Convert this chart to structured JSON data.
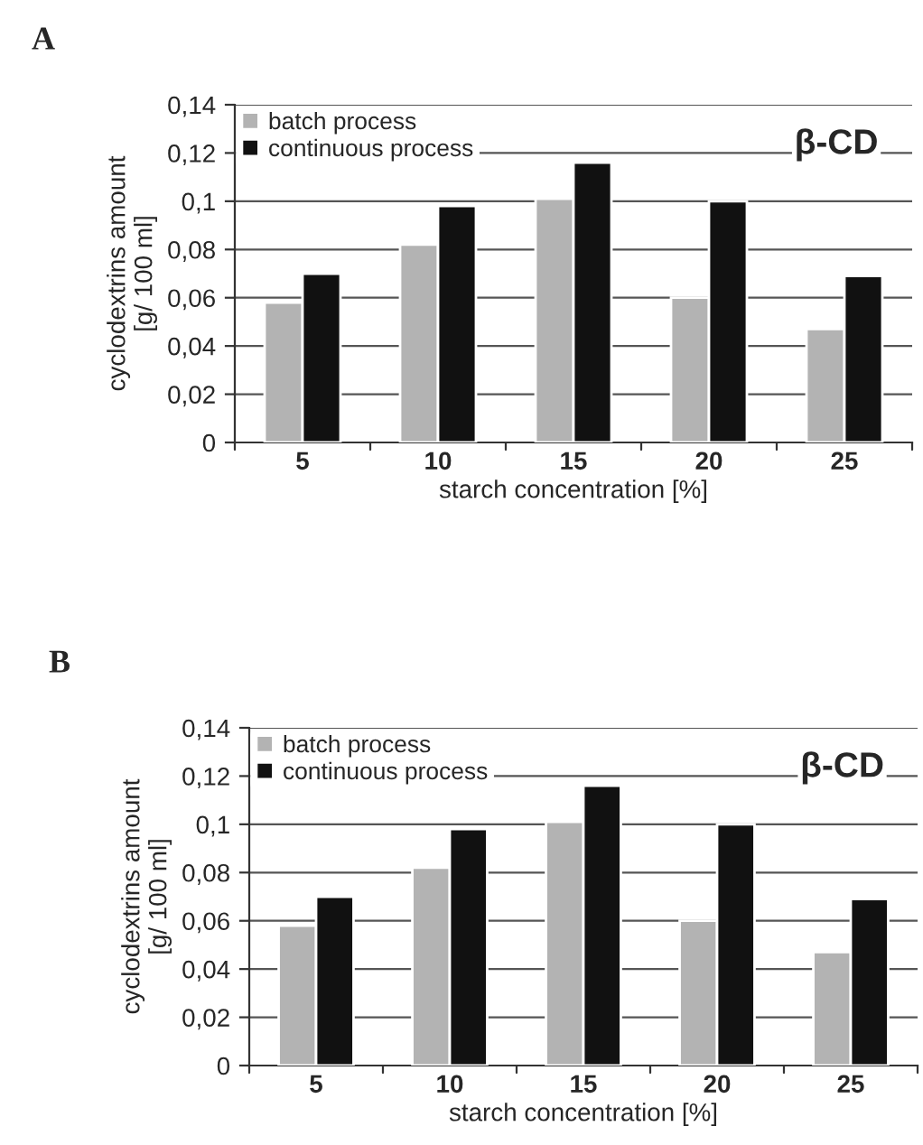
{
  "chart_data": [
    {
      "type": "bar",
      "title": "A",
      "xlabel": "starch concentration [%]",
      "ylabel": "cyclodextrins amount\n[g/ 100 ml]",
      "categories": [
        "5",
        "10",
        "15",
        "20",
        "25"
      ],
      "series": [
        {
          "name": "batch process",
          "color": "#b3b3b3",
          "values": [
            0.058,
            0.082,
            0.101,
            0.06,
            0.047
          ]
        },
        {
          "name": "continuous process",
          "color": "#111111",
          "values": [
            0.07,
            0.098,
            0.116,
            0.1,
            0.069
          ]
        }
      ],
      "ylim": [
        0,
        0.14
      ],
      "yticks": [
        0,
        {
          "value": 0.02,
          "label": "0,02"
        },
        {
          "value": 0.04,
          "label": "0,04"
        },
        {
          "value": 0.06,
          "label": "0,06"
        },
        {
          "value": 0.08,
          "label": "0,08"
        },
        {
          "value": 0.1,
          "label": "0,1"
        },
        {
          "value": 0.12,
          "label": "0,12"
        },
        {
          "value": 0.14,
          "label": "0,14"
        }
      ],
      "annotations": [
        "β-CD"
      ],
      "grid": "y",
      "legend": "top left"
    },
    {
      "type": "bar",
      "title": "B",
      "xlabel": "starch concentration [%]",
      "ylabel": "cyclodextrins amount\n[g/ 100 ml]",
      "categories": [
        "5",
        "10",
        "15",
        "20",
        "25"
      ],
      "series": [
        {
          "name": "batch process",
          "color": "#b3b3b3",
          "values": [
            0.058,
            0.082,
            0.101,
            0.06,
            0.047
          ]
        },
        {
          "name": "continuous process",
          "color": "#111111",
          "values": [
            0.07,
            0.098,
            0.116,
            0.1,
            0.069
          ]
        }
      ],
      "ylim": [
        0,
        0.14
      ],
      "yticks": [
        0,
        {
          "value": 0.02,
          "label": "0,02"
        },
        {
          "value": 0.04,
          "label": "0,04"
        },
        {
          "value": 0.06,
          "label": "0,06"
        },
        {
          "value": 0.08,
          "label": "0,08"
        },
        {
          "value": 0.1,
          "label": "0,1"
        },
        {
          "value": 0.12,
          "label": "0,12"
        },
        {
          "value": 0.14,
          "label": "0,14"
        }
      ],
      "annotations": [
        "β-CD"
      ],
      "grid": "y",
      "legend": "top left"
    }
  ]
}
